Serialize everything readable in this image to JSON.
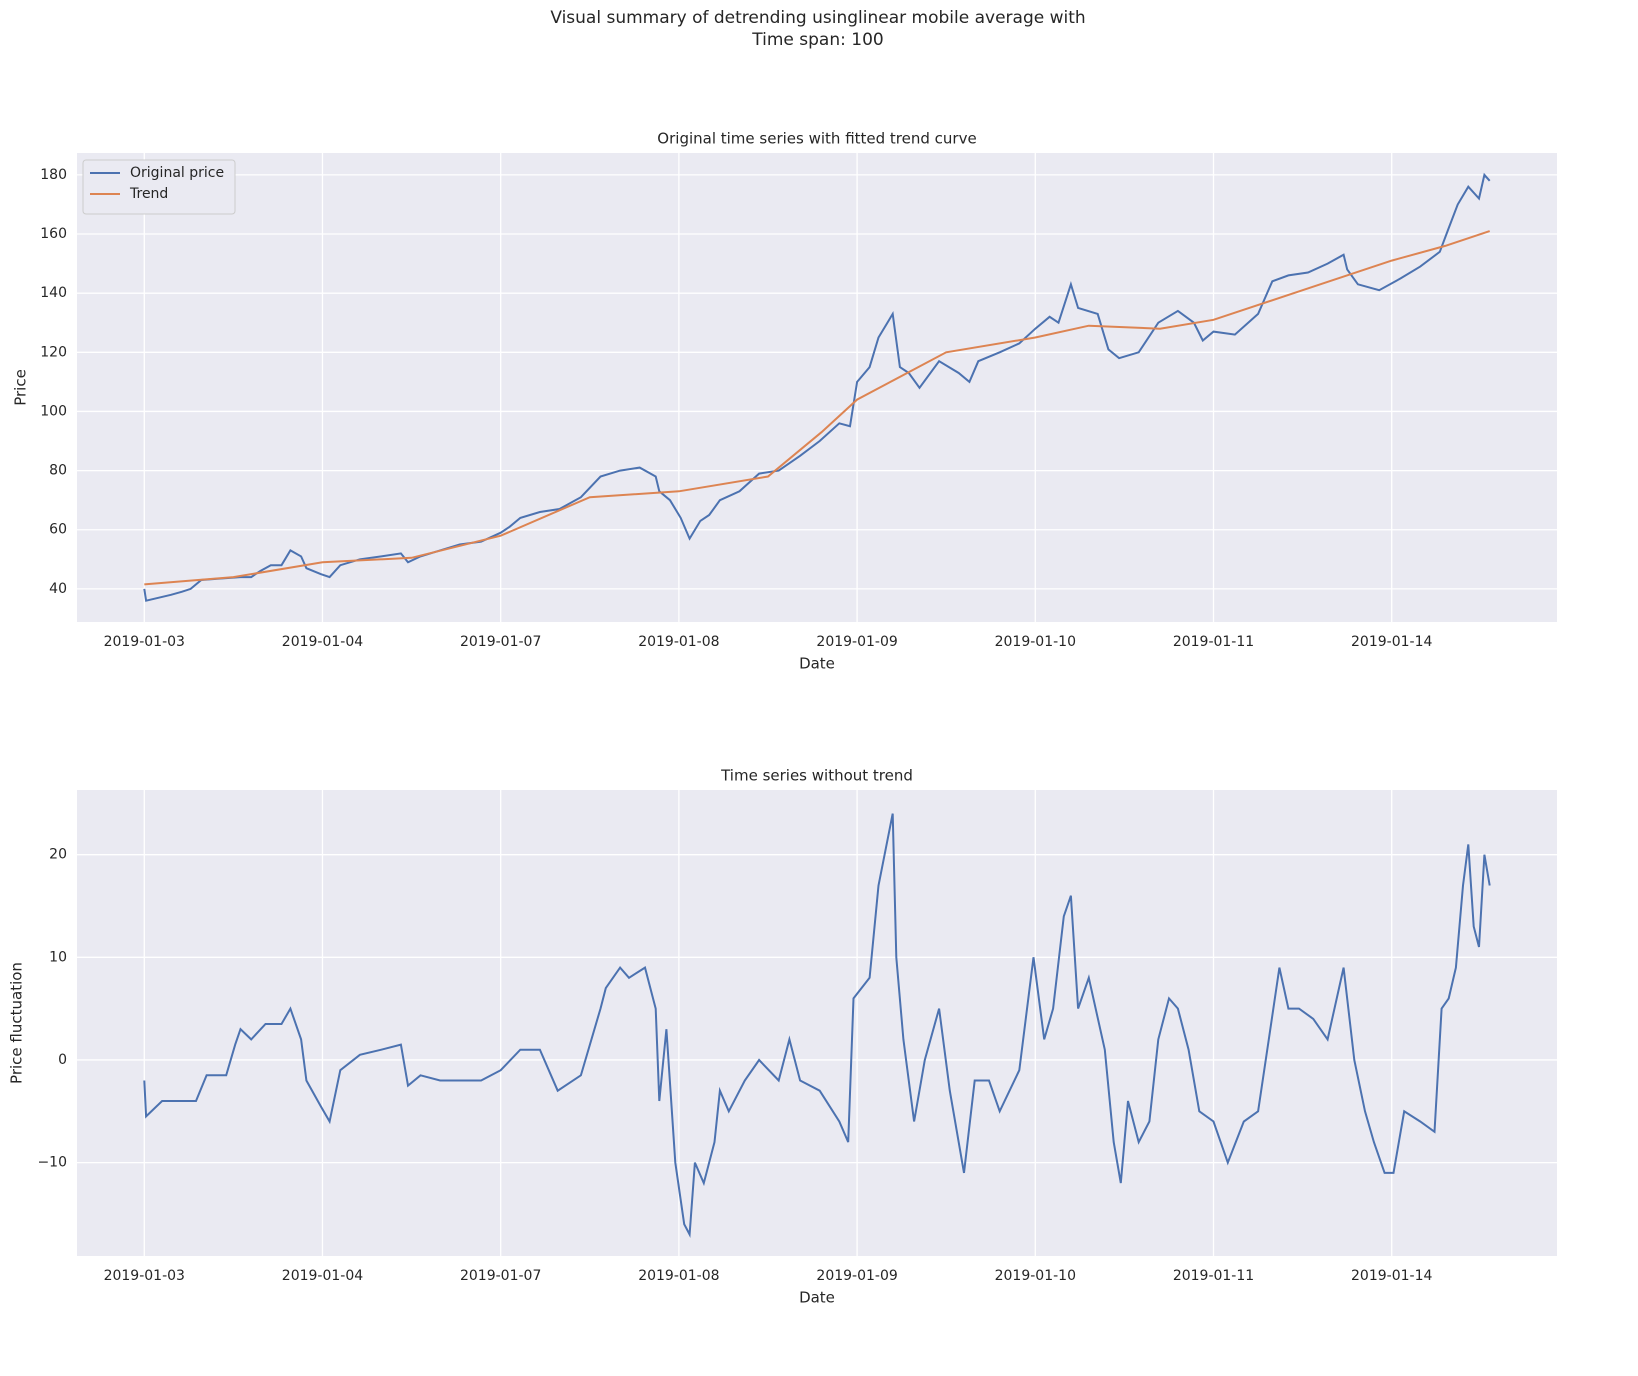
{
  "title_lines": [
    "Visual summary of detrending usinglinear mobile average with",
    "Time span: 100"
  ],
  "chart_data": [
    {
      "type": "line",
      "title": "Original time series with fitted trend curve",
      "xlabel": "Date",
      "ylabel": "Price",
      "xlim": [
        -37.75,
        792.75
      ],
      "ylim": [
        28.8,
        187.4
      ],
      "xticks": [
        {
          "value": 0,
          "label": "2019-01-03"
        },
        {
          "value": 100,
          "label": "2019-01-04"
        },
        {
          "value": 200,
          "label": "2019-01-07"
        },
        {
          "value": 300,
          "label": "2019-01-08"
        },
        {
          "value": 400,
          "label": "2019-01-09"
        },
        {
          "value": 500,
          "label": "2019-01-10"
        },
        {
          "value": 600,
          "label": "2019-01-11"
        },
        {
          "value": 700,
          "label": "2019-01-14"
        }
      ],
      "yticks": [
        40,
        60,
        80,
        100,
        120,
        140,
        160,
        180
      ],
      "grid": true,
      "legend": "upper left",
      "series": [
        {
          "name": "Original price",
          "color": "#4c72b0",
          "x": [
            0,
            1,
            15,
            21,
            26,
            32,
            43,
            54,
            60,
            65,
            71,
            77,
            82,
            88,
            91,
            99,
            104,
            110,
            121,
            133,
            144,
            148,
            155,
            166,
            177,
            189,
            200,
            205,
            211,
            222,
            233,
            245,
            256,
            267,
            278,
            287,
            289,
            295,
            301,
            306,
            312,
            317,
            323,
            334,
            345,
            356,
            368,
            379,
            390,
            396,
            400,
            407,
            412,
            420,
            424,
            429,
            435,
            446,
            457,
            463,
            468,
            480,
            491,
            500,
            508,
            513,
            520,
            524,
            535,
            541,
            547,
            558,
            569,
            580,
            589,
            594,
            600,
            612,
            625,
            633,
            642,
            653,
            664,
            673,
            675,
            681,
            693,
            705,
            716,
            727,
            732,
            737,
            743,
            749,
            752,
            755
          ],
          "values": [
            40,
            36,
            38,
            39,
            40,
            43,
            43.5,
            44,
            44,
            46,
            48,
            48,
            53,
            51,
            47,
            45,
            44,
            48,
            50,
            51,
            52,
            49,
            51,
            53,
            55,
            56,
            59,
            61,
            64,
            66,
            67,
            71,
            78,
            80,
            81,
            78,
            73,
            70,
            64,
            57,
            63,
            65,
            70,
            73,
            79,
            80,
            85,
            90,
            96,
            95,
            110,
            115,
            125,
            133,
            115,
            113,
            108,
            117,
            113,
            110,
            117,
            120,
            123,
            128,
            132,
            130,
            143,
            135,
            133,
            121,
            118,
            120,
            130,
            134,
            130,
            124,
            127,
            126,
            133,
            144,
            146,
            147,
            150,
            153,
            148,
            143,
            141,
            145,
            149,
            154,
            162,
            170,
            176,
            172,
            180,
            178
          ]
        },
        {
          "name": "Trend",
          "color": "#dd8452",
          "x": [
            0,
            50,
            100,
            150,
            200,
            250,
            300,
            350,
            380,
            400,
            450,
            500,
            530,
            570,
            600,
            650,
            700,
            730,
            755
          ],
          "values": [
            41.5,
            44,
            49,
            50.5,
            58,
            71,
            73,
            78,
            93,
            104,
            120,
            125,
            129,
            128,
            131,
            141,
            151,
            156,
            161
          ]
        }
      ]
    },
    {
      "type": "line",
      "title": "Time series without trend",
      "xlabel": "Date",
      "ylabel": "Price fluctuation",
      "xlim": [
        -37.75,
        792.75
      ],
      "ylim": [
        -19.1,
        26.3
      ],
      "xticks": [
        {
          "value": 0,
          "label": "2019-01-03"
        },
        {
          "value": 100,
          "label": "2019-01-04"
        },
        {
          "value": 200,
          "label": "2019-01-07"
        },
        {
          "value": 300,
          "label": "2019-01-08"
        },
        {
          "value": 400,
          "label": "2019-01-09"
        },
        {
          "value": 500,
          "label": "2019-01-10"
        },
        {
          "value": 600,
          "label": "2019-01-11"
        },
        {
          "value": 700,
          "label": "2019-01-14"
        }
      ],
      "yticks": [
        {
          "value": -10,
          "label": "−10"
        },
        0,
        10,
        20
      ],
      "grid": true,
      "series": [
        {
          "color": "#4c72b0",
          "x": [
            0,
            1,
            10,
            21,
            29,
            35,
            40,
            46,
            51,
            54,
            60,
            68,
            77,
            82,
            88,
            91,
            99,
            104,
            110,
            121,
            133,
            144,
            148,
            155,
            166,
            177,
            189,
            200,
            211,
            222,
            232,
            245,
            256,
            259,
            267,
            272,
            281,
            287,
            289,
            293,
            298,
            303,
            306,
            309,
            314,
            320,
            323,
            328,
            337,
            345,
            356,
            362,
            368,
            379,
            390,
            395,
            398,
            407,
            412,
            420,
            422,
            426,
            432,
            438,
            446,
            452,
            460,
            466,
            474,
            480,
            491,
            499,
            505,
            510,
            516,
            520,
            524,
            530,
            539,
            544,
            548,
            552,
            558,
            564,
            569,
            575,
            580,
            586,
            592,
            600,
            608,
            617,
            625,
            631,
            637,
            642,
            648,
            656,
            664,
            673,
            679,
            685,
            690,
            696,
            701,
            707,
            716,
            724,
            728,
            732,
            736,
            740,
            743,
            746,
            749,
            752,
            755
          ],
          "values": [
            -2,
            -5.5,
            -4,
            -4,
            -4,
            -1.5,
            -1.5,
            -1.5,
            1.5,
            3,
            2,
            3.5,
            3.5,
            5,
            2,
            -2,
            -4.5,
            -6,
            -1,
            0.5,
            1,
            1.5,
            -2.5,
            -1.5,
            -2,
            -2,
            -2,
            -1,
            1,
            1,
            -3,
            -1.5,
            5,
            7,
            9,
            8,
            9,
            5,
            -4,
            3,
            -10,
            -16,
            -17,
            -10,
            -12,
            -8,
            -3,
            -5,
            -2,
            0,
            -2,
            2,
            -2,
            -3,
            -6,
            -8,
            6,
            8,
            17,
            24,
            10,
            2,
            -6,
            0,
            5,
            -3,
            -11,
            -2,
            -2,
            -5,
            -1,
            10,
            2,
            5,
            14,
            16,
            5,
            8,
            1,
            -8,
            -12,
            -4,
            -8,
            -6,
            2,
            6,
            5,
            1,
            -5,
            -6,
            -10,
            -6,
            -5,
            2,
            9,
            5,
            5,
            4,
            2,
            9,
            0,
            -5,
            -8,
            -11,
            -11,
            -5,
            -6,
            -7,
            5,
            6,
            9,
            17,
            21,
            13,
            11,
            20,
            17
          ]
        }
      ]
    }
  ]
}
